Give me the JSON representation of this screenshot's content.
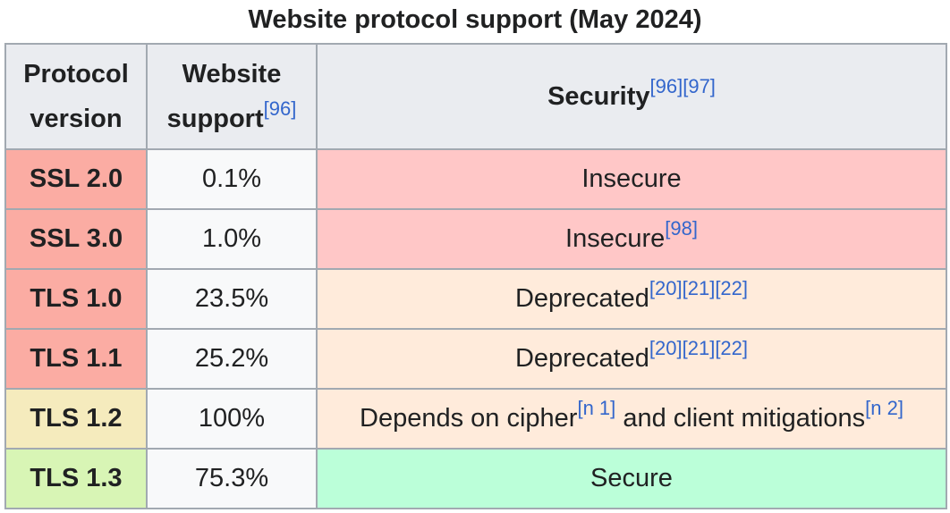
{
  "caption": "Website protocol support (May 2024)",
  "headers": {
    "protocol": [
      "Protocol",
      "version"
    ],
    "support": [
      "Website",
      "support"
    ],
    "support_ref": "[96]",
    "security": "Security",
    "security_refs": "[96][97]"
  },
  "rows": [
    {
      "protocol": "SSL 2.0",
      "support": "0.1%",
      "security": "Insecure",
      "refs": "",
      "security2": "",
      "refs2": ""
    },
    {
      "protocol": "SSL 3.0",
      "support": "1.0%",
      "security": "Insecure",
      "refs": "[98]",
      "security2": "",
      "refs2": ""
    },
    {
      "protocol": "TLS 1.0",
      "support": "23.5%",
      "security": "Deprecated",
      "refs": "[20][21][22]",
      "security2": "",
      "refs2": ""
    },
    {
      "protocol": "TLS 1.1",
      "support": "25.2%",
      "security": "Deprecated",
      "refs": "[20][21][22]",
      "security2": "",
      "refs2": ""
    },
    {
      "protocol": "TLS 1.2",
      "support": "100%",
      "security": "Depends on cipher",
      "refs": "[n 1]",
      "security2": " and client mitigations",
      "refs2": "[n 2]"
    },
    {
      "protocol": "TLS 1.3",
      "support": "75.3%",
      "security": "Secure",
      "refs": "",
      "security2": "",
      "refs2": ""
    }
  ],
  "colors": {
    "header_bg": "#eaecf0",
    "insecure": "#ffc7c7",
    "deprecated_protocol": "#fbaca3",
    "deprecated": "#ffebdb",
    "tls12_protocol": "#f5ebbd",
    "secure_protocol": "#d8f5b5",
    "secure": "#bbffd9",
    "link": "#3366cc",
    "border": "#a2a9b1"
  }
}
